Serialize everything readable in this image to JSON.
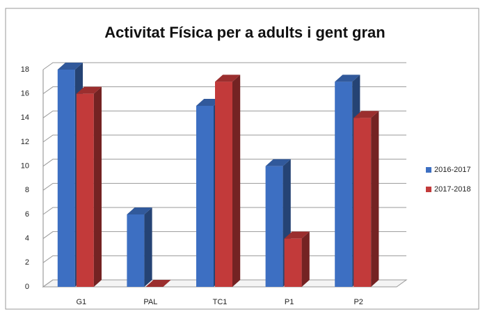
{
  "chart_data": {
    "type": "bar",
    "title": "Activitat Física per a adults i gent gran",
    "categories": [
      "G1",
      "PAL",
      "TC1",
      "P1",
      "P2"
    ],
    "series": [
      {
        "name": "2016-2017",
        "color": "#3d6fc2",
        "values": [
          18,
          6,
          15,
          10,
          17
        ]
      },
      {
        "name": "2017-2018",
        "color": "#c23a3a",
        "values": [
          16,
          0,
          17,
          4,
          14
        ]
      }
    ],
    "ylim": [
      0,
      18
    ],
    "yticks": [
      0,
      2,
      4,
      6,
      8,
      10,
      12,
      14,
      16,
      18
    ],
    "grid": true,
    "legend": "right"
  }
}
